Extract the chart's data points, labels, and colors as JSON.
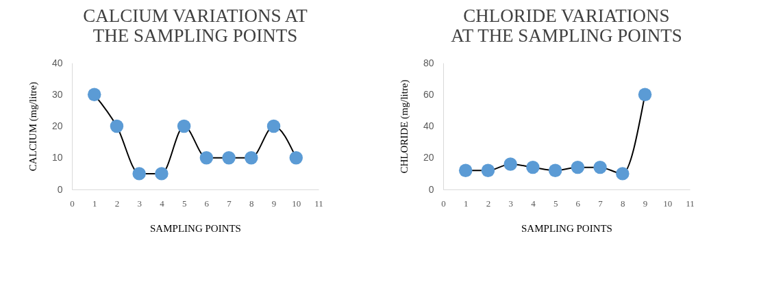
{
  "chart_data": [
    {
      "type": "line",
      "title": [
        "CALCIUM VARIATIONS AT",
        "THE SAMPLING POINTS"
      ],
      "xlabel": "SAMPLING POINTS",
      "ylabel": "CALCIUM (mg/litre)",
      "x": [
        1,
        2,
        3,
        4,
        5,
        6,
        7,
        8,
        9,
        10
      ],
      "series": [
        {
          "color": "#5b9bd5",
          "values": [
            30,
            20,
            5,
            5,
            20,
            10,
            10,
            10,
            20,
            10
          ]
        }
      ],
      "xlim": [
        0,
        11
      ],
      "xticks": [
        0,
        1,
        2,
        3,
        4,
        5,
        6,
        7,
        8,
        9,
        10,
        11
      ],
      "ylim": [
        0,
        40
      ],
      "yticks": [
        0,
        10,
        20,
        30,
        40
      ],
      "grid": false,
      "marker": "circle",
      "line_style": "solid"
    },
    {
      "type": "line",
      "title": [
        "CHLORIDE VARIATIONS",
        "AT THE SAMPLING POINTS"
      ],
      "xlabel": "SAMPLING POINTS",
      "ylabel": "CHLORIDE (mg/litre)",
      "x": [
        1,
        2,
        3,
        4,
        5,
        6,
        7,
        8,
        9
      ],
      "series": [
        {
          "color": "#5b9bd5",
          "values": [
            12,
            12,
            16,
            14,
            12,
            14,
            14,
            10,
            60
          ]
        }
      ],
      "xlim": [
        0,
        11
      ],
      "xticks": [
        0,
        1,
        2,
        3,
        4,
        5,
        6,
        7,
        8,
        9,
        10,
        11
      ],
      "ylim": [
        0,
        80
      ],
      "yticks": [
        0,
        20,
        40,
        60,
        80
      ],
      "grid": false,
      "marker": "circle",
      "line_style": "solid"
    }
  ]
}
